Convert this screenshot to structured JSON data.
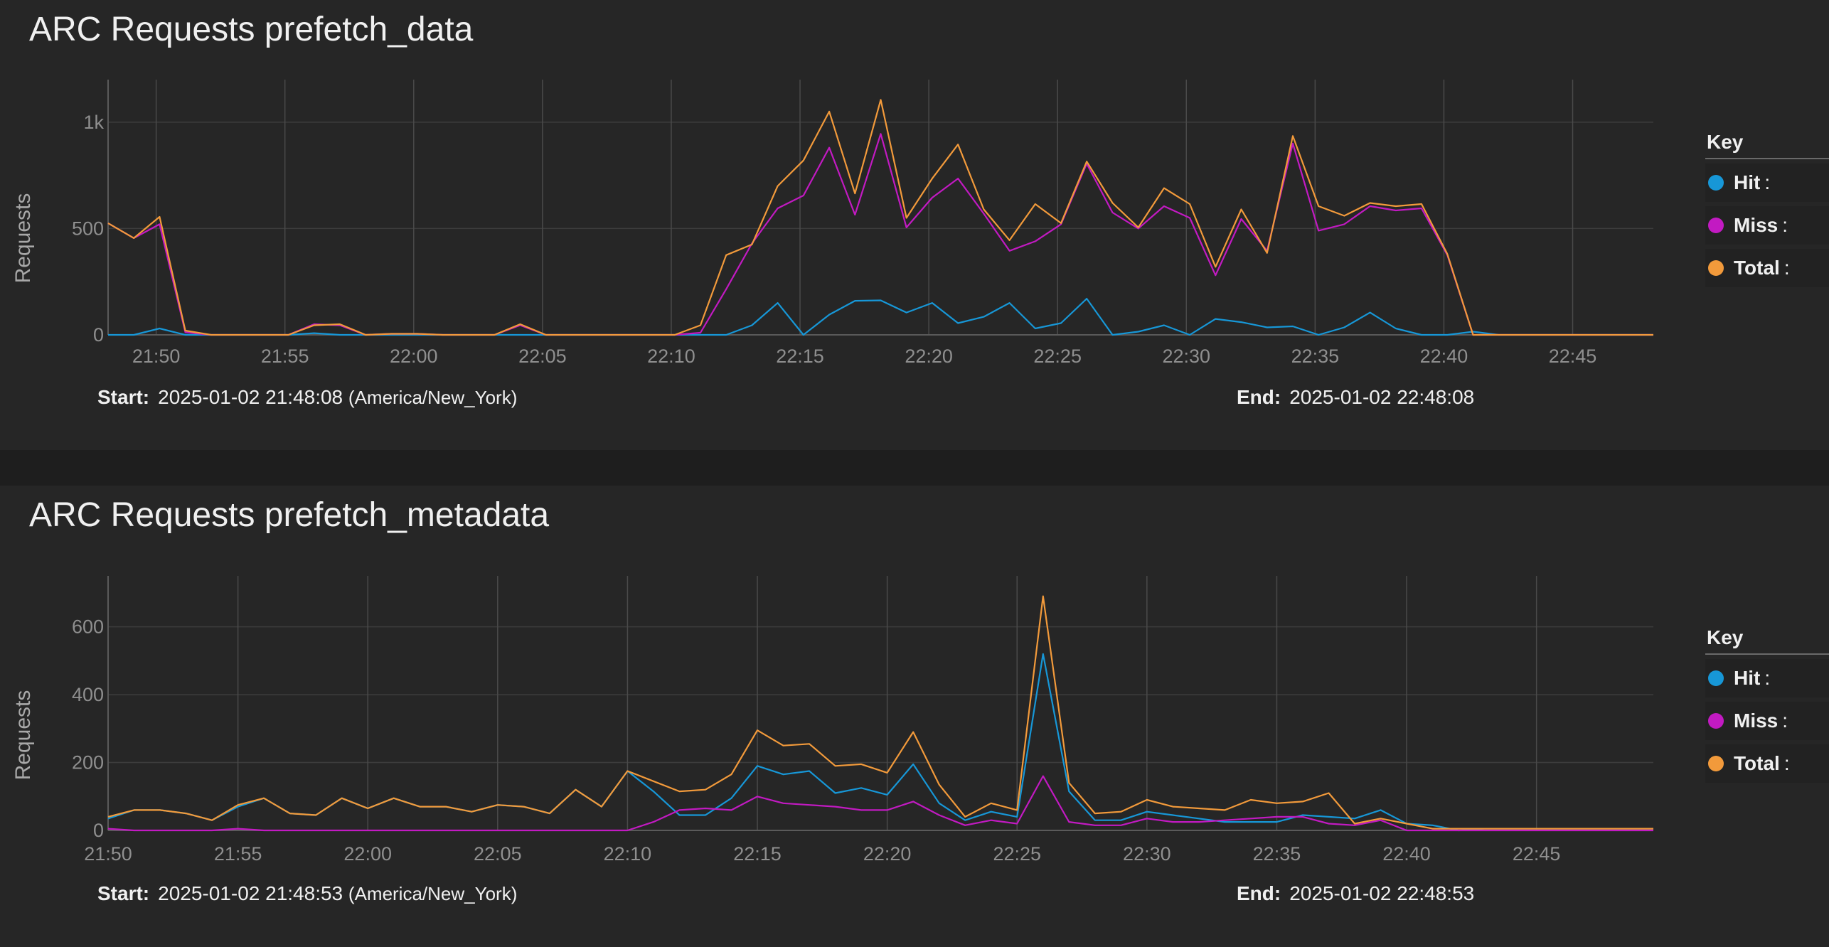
{
  "panels": [
    {
      "title": "ARC Requests prefetch_data",
      "start_label": "Start:",
      "start_value": "2025-01-02 21:48:08",
      "start_tz": "(America/New_York)",
      "end_label": "End:",
      "end_value": "2025-01-02 22:48:08",
      "legend": {
        "title": "Key",
        "items": [
          {
            "label": "Hit",
            "color": "#1797d7"
          },
          {
            "label": "Miss",
            "color": "#c21ac2"
          },
          {
            "label": "Total",
            "color": "#f29a3b"
          }
        ]
      }
    },
    {
      "title": "ARC Requests prefetch_metadata",
      "start_label": "Start:",
      "start_value": "2025-01-02 21:48:53",
      "start_tz": "(America/New_York)",
      "end_label": "End:",
      "end_value": "2025-01-02 22:48:53",
      "legend": {
        "title": "Key",
        "items": [
          {
            "label": "Hit",
            "color": "#1797d7"
          },
          {
            "label": "Miss",
            "color": "#c21ac2"
          },
          {
            "label": "Total",
            "color": "#f29a3b"
          }
        ]
      }
    }
  ],
  "chart_data": [
    {
      "type": "line",
      "title": "ARC Requests prefetch_data",
      "ylabel": "Requests",
      "xlabel": "",
      "x_unit": "minutes",
      "xlim": [
        "21:48:08",
        "22:48:08"
      ],
      "ylim": [
        0,
        1200
      ],
      "yticks": [
        0,
        500,
        1000
      ],
      "ytick_labels": [
        "0",
        "500",
        "1k"
      ],
      "xticks": [
        "21:50",
        "21:55",
        "22:00",
        "22:05",
        "22:10",
        "22:15",
        "22:20",
        "22:25",
        "22:30",
        "22:35",
        "22:40",
        "22:45"
      ],
      "grid": true,
      "legend_position": "right",
      "x": [
        "21:48:08",
        "21:49:08",
        "21:50:08",
        "21:51:08",
        "21:52:08",
        "21:53:08",
        "21:54:08",
        "21:55:08",
        "21:56:08",
        "21:57:08",
        "21:58:08",
        "21:59:08",
        "22:00:08",
        "22:01:08",
        "22:02:08",
        "22:03:08",
        "22:04:08",
        "22:05:08",
        "22:06:08",
        "22:07:08",
        "22:08:08",
        "22:09:08",
        "22:10:08",
        "22:11:08",
        "22:12:08",
        "22:13:08",
        "22:14:08",
        "22:15:08",
        "22:16:08",
        "22:17:08",
        "22:18:08",
        "22:19:08",
        "22:20:08",
        "22:21:08",
        "22:22:08",
        "22:23:08",
        "22:24:08",
        "22:25:08",
        "22:26:08",
        "22:27:08",
        "22:28:08",
        "22:29:08",
        "22:30:08",
        "22:31:08",
        "22:32:08",
        "22:33:08",
        "22:34:08",
        "22:35:08",
        "22:36:08",
        "22:37:08",
        "22:38:08",
        "22:39:08",
        "22:40:08",
        "22:41:08",
        "22:42:08",
        "22:43:08",
        "22:44:08",
        "22:45:08",
        "22:46:08",
        "22:47:08",
        "22:48:08"
      ],
      "series": [
        {
          "name": "Hit",
          "color": "#1797d7",
          "values": [
            0,
            0,
            30,
            0,
            0,
            0,
            0,
            0,
            8,
            0,
            0,
            0,
            0,
            0,
            0,
            0,
            0,
            0,
            0,
            0,
            0,
            0,
            0,
            0,
            0,
            45,
            150,
            0,
            95,
            160,
            162,
            105,
            150,
            55,
            85,
            150,
            30,
            55,
            170,
            0,
            15,
            45,
            0,
            75,
            60,
            35,
            40,
            0,
            35,
            105,
            30,
            0,
            0,
            15,
            0,
            0,
            0,
            0,
            0,
            0,
            0
          ]
        },
        {
          "name": "Miss",
          "color": "#c21ac2",
          "values": [
            525,
            455,
            520,
            12,
            0,
            0,
            0,
            0,
            50,
            45,
            0,
            5,
            5,
            0,
            0,
            0,
            45,
            0,
            0,
            0,
            0,
            0,
            0,
            10,
            215,
            430,
            595,
            655,
            880,
            565,
            945,
            505,
            645,
            735,
            570,
            395,
            440,
            520,
            805,
            575,
            500,
            605,
            550,
            280,
            545,
            395,
            900,
            490,
            520,
            605,
            585,
            595,
            375,
            0,
            0,
            0,
            0,
            0,
            0,
            0,
            0
          ]
        },
        {
          "name": "Total",
          "color": "#f29a3b",
          "values": [
            525,
            455,
            555,
            20,
            0,
            0,
            0,
            0,
            45,
            50,
            0,
            5,
            5,
            0,
            0,
            0,
            50,
            0,
            0,
            0,
            0,
            0,
            0,
            45,
            375,
            425,
            700,
            820,
            1050,
            665,
            1105,
            550,
            735,
            895,
            590,
            445,
            615,
            525,
            815,
            620,
            505,
            690,
            615,
            320,
            590,
            385,
            935,
            605,
            560,
            620,
            605,
            615,
            380,
            0,
            0,
            0,
            0,
            0,
            0,
            0,
            0
          ]
        }
      ]
    },
    {
      "type": "line",
      "title": "ARC Requests prefetch_metadata",
      "ylabel": "Requests",
      "xlabel": "",
      "x_unit": "minutes",
      "xlim": [
        "21:50:00",
        "22:49:30"
      ],
      "ylim": [
        0,
        750
      ],
      "yticks": [
        0,
        200,
        400,
        600
      ],
      "ytick_labels": [
        "0",
        "200",
        "400",
        "600"
      ],
      "xticks": [
        "21:50",
        "21:55",
        "22:00",
        "22:05",
        "22:10",
        "22:15",
        "22:20",
        "22:25",
        "22:30",
        "22:35",
        "22:40",
        "22:45"
      ],
      "grid": true,
      "legend_position": "right",
      "x": [
        "21:50",
        "21:51",
        "21:52",
        "21:53",
        "21:54",
        "21:55",
        "21:56",
        "21:57",
        "21:58",
        "21:59",
        "22:00",
        "22:01",
        "22:02",
        "22:03",
        "22:04",
        "22:05",
        "22:06",
        "22:07",
        "22:08",
        "22:09",
        "22:10",
        "22:11",
        "22:12",
        "22:13",
        "22:14",
        "22:15",
        "22:16",
        "22:17",
        "22:18",
        "22:19",
        "22:20",
        "22:21",
        "22:22",
        "22:23",
        "22:24",
        "22:25",
        "22:26",
        "22:27",
        "22:28",
        "22:29",
        "22:30",
        "22:31",
        "22:32",
        "22:33",
        "22:34",
        "22:35",
        "22:36",
        "22:37",
        "22:38",
        "22:39",
        "22:40",
        "22:41",
        "22:42",
        "22:43",
        "22:44",
        "22:45",
        "22:46",
        "22:47",
        "22:48",
        "22:49",
        "22:49:30"
      ],
      "series": [
        {
          "name": "Hit",
          "color": "#1797d7",
          "values": [
            35,
            60,
            60,
            50,
            30,
            70,
            95,
            50,
            45,
            95,
            65,
            95,
            70,
            70,
            55,
            75,
            70,
            50,
            120,
            70,
            175,
            115,
            45,
            45,
            95,
            190,
            165,
            175,
            110,
            125,
            105,
            195,
            80,
            30,
            55,
            40,
            520,
            115,
            30,
            30,
            55,
            45,
            35,
            25,
            25,
            25,
            45,
            40,
            35,
            60,
            20,
            15,
            0,
            5,
            5,
            5,
            5,
            5,
            5,
            5,
            5
          ]
        },
        {
          "name": "Miss",
          "color": "#c21ac2",
          "values": [
            5,
            0,
            0,
            0,
            0,
            5,
            0,
            0,
            0,
            0,
            0,
            0,
            0,
            0,
            0,
            0,
            0,
            0,
            0,
            0,
            0,
            25,
            60,
            65,
            60,
            100,
            80,
            75,
            70,
            60,
            60,
            85,
            45,
            15,
            30,
            20,
            160,
            25,
            15,
            15,
            35,
            25,
            25,
            30,
            35,
            40,
            40,
            20,
            15,
            30,
            0,
            0,
            0,
            0,
            0,
            0,
            0,
            0,
            0,
            0,
            0
          ]
        },
        {
          "name": "Total",
          "color": "#f29a3b",
          "values": [
            40,
            60,
            60,
            50,
            30,
            75,
            95,
            50,
            45,
            95,
            65,
            95,
            70,
            70,
            55,
            75,
            70,
            50,
            120,
            70,
            175,
            145,
            115,
            120,
            165,
            295,
            250,
            255,
            190,
            195,
            170,
            290,
            135,
            40,
            80,
            60,
            690,
            140,
            50,
            55,
            90,
            70,
            65,
            60,
            90,
            80,
            85,
            110,
            20,
            35,
            20,
            5,
            5,
            5,
            5,
            5,
            5,
            5,
            5,
            5,
            5
          ]
        }
      ]
    }
  ]
}
